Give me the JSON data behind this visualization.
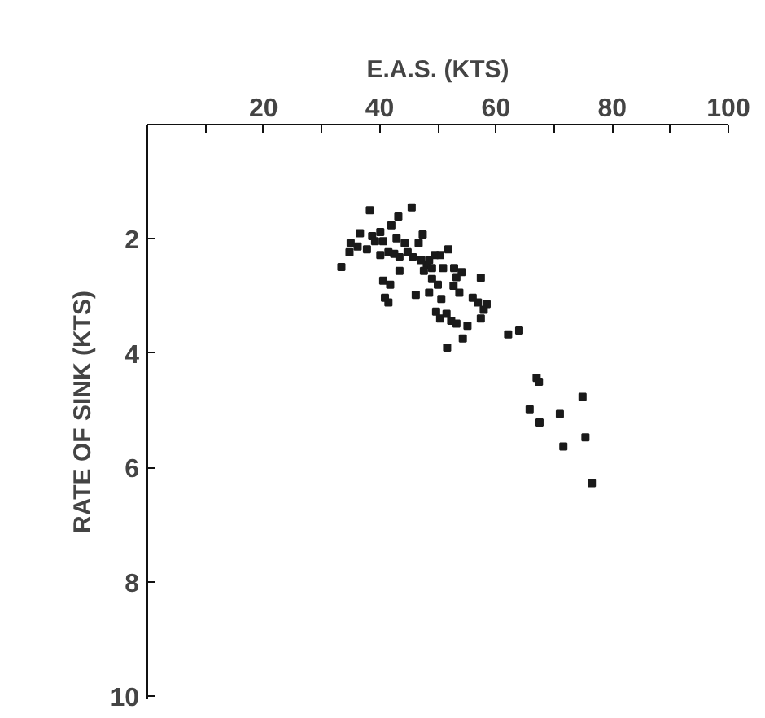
{
  "chart_data": {
    "type": "scatter",
    "xlabel": "E.A.S. (KTS)",
    "ylabel": "RATE OF SINK (KTS)",
    "xlim": [
      0,
      100
    ],
    "ylim": [
      10.05,
      0
    ],
    "xticks": [
      {
        "value": 10,
        "label": null
      },
      20,
      {
        "value": 30,
        "label": null
      },
      40,
      {
        "value": 50,
        "label": null
      },
      60,
      {
        "value": 70,
        "label": null
      },
      80,
      {
        "value": 90,
        "label": null
      },
      100
    ],
    "yticks": [
      2,
      4,
      6,
      8,
      10
    ],
    "grid": false,
    "marker": "square",
    "series": [
      {
        "color": "#1a1a1a",
        "x": [
          38.3,
          45.5,
          43.2,
          42.0,
          36.6,
          38.7,
          40.1,
          35.0,
          36.2,
          37.8,
          39.2,
          40.6,
          42.9,
          44.3,
          47.4,
          46.7,
          34.8,
          33.4,
          40.1,
          41.5,
          42.5,
          43.4,
          44.8,
          45.7,
          47.1,
          48.1,
          47.6,
          48.5,
          49.5,
          50.4,
          51.8,
          49.0,
          50.9,
          52.8,
          54.1,
          53.2,
          43.4,
          40.6,
          41.8,
          49.0,
          50.0,
          52.7,
          57.4,
          46.2,
          40.9,
          41.5,
          48.5,
          50.6,
          53.7,
          56.0,
          56.9,
          58.4,
          57.9,
          49.7,
          51.5,
          50.4,
          52.3,
          53.2,
          57.4,
          55.1,
          54.3,
          51.6,
          62.1,
          64.0,
          67.0,
          67.4,
          74.9,
          65.8,
          71.0,
          67.5,
          75.4,
          71.6,
          76.5
        ],
        "values": [
          1.5,
          1.45,
          1.61,
          1.76,
          1.9,
          1.95,
          1.88,
          2.07,
          2.13,
          2.18,
          2.04,
          2.04,
          1.99,
          2.07,
          1.92,
          2.07,
          2.23,
          2.49,
          2.28,
          2.23,
          2.26,
          2.32,
          2.23,
          2.32,
          2.37,
          2.46,
          2.56,
          2.37,
          2.28,
          2.28,
          2.18,
          2.51,
          2.51,
          2.51,
          2.58,
          2.67,
          2.56,
          2.73,
          2.8,
          2.7,
          2.8,
          2.82,
          2.68,
          2.98,
          3.03,
          3.11,
          2.94,
          3.05,
          2.94,
          3.03,
          3.11,
          3.14,
          3.24,
          3.27,
          3.31,
          3.39,
          3.43,
          3.48,
          3.39,
          3.52,
          3.74,
          3.9,
          3.67,
          3.6,
          4.43,
          4.5,
          4.76,
          4.98,
          5.06,
          5.21,
          5.47,
          5.63,
          6.27
        ]
      }
    ]
  }
}
